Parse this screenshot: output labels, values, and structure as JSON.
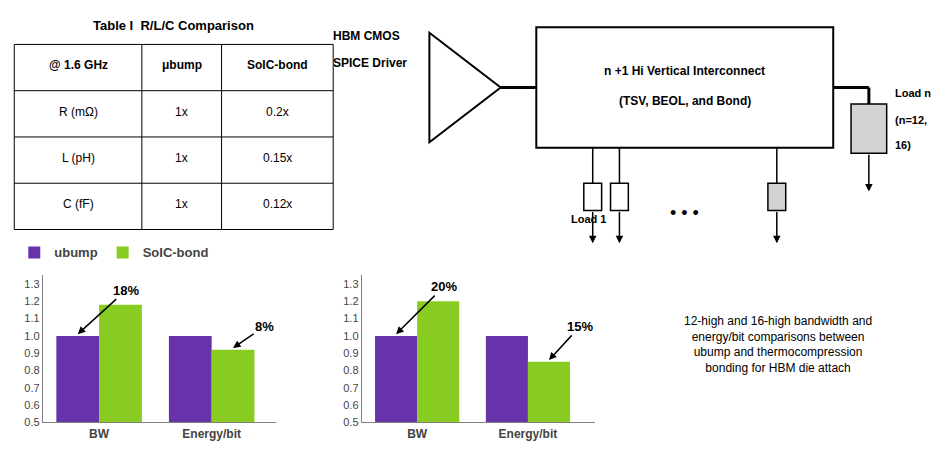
{
  "chart_data": [
    {
      "type": "bar",
      "categories": [
        "BW",
        "Energy/bit"
      ],
      "series": [
        {
          "name": "ubump",
          "color": "#6633aa",
          "values": [
            1.0,
            1.0
          ]
        },
        {
          "name": "SoIC-bond",
          "color": "#88cc22",
          "values": [
            1.18,
            0.92
          ]
        }
      ],
      "ylim": [
        0.5,
        1.35
      ],
      "yticks": [
        0.5,
        0.6,
        0.7,
        0.8,
        0.9,
        {
          "value": 1.0,
          "label": "1.0"
        },
        1.1,
        1.2,
        1.3
      ],
      "grid": false,
      "annotations": [
        {
          "text": "18%",
          "category": "BW",
          "series": "ubump"
        },
        {
          "text": "8%",
          "category": "Energy/bit",
          "series": "SoIC-bond"
        }
      ]
    },
    {
      "type": "bar",
      "categories": [
        "BW",
        "Energy/bit"
      ],
      "series": [
        {
          "name": "ubump",
          "color": "#6633aa",
          "values": [
            1.0,
            1.0
          ]
        },
        {
          "name": "SoIC-bond",
          "color": "#88cc22",
          "values": [
            1.2,
            0.85
          ]
        }
      ],
      "ylim": [
        0.5,
        1.35
      ],
      "yticks": [
        0.5,
        0.6,
        0.7,
        0.8,
        0.9,
        {
          "value": 1.0,
          "label": "1.0"
        },
        1.1,
        1.2,
        1.3
      ],
      "grid": false,
      "annotations": [
        {
          "text": "20%",
          "category": "BW",
          "series": "ubump"
        },
        {
          "text": "15%",
          "category": "Energy/bit",
          "series": "SoIC-bond"
        }
      ]
    }
  ],
  "table": {
    "title": "Table I  R/L/C Comparison",
    "headers": [
      "@ 1.6 GHz",
      "μbump",
      "SoIC-bond"
    ],
    "rows": [
      [
        "R (mΩ)",
        "1x",
        "0.2x"
      ],
      [
        "L (pH)",
        "1x",
        "0.15x"
      ],
      [
        "C (fF)",
        "1x",
        "0.12x"
      ]
    ]
  },
  "diagram": {
    "driver_label": [
      "HBM CMOS",
      "SPICE Driver"
    ],
    "box_label": [
      "n +1 Hi Vertical Interconnect",
      "(TSV, BEOL, and Bond)"
    ],
    "load_n_label": [
      "Load n",
      "(n=12,",
      "16)"
    ],
    "load_1_label": "Load 1",
    "ellipsis": "• • •"
  },
  "note": "12-high and 16-high bandwidth and\nenergy/bit comparisons between\nubump and thermocompression\nbonding for HBM die attach"
}
